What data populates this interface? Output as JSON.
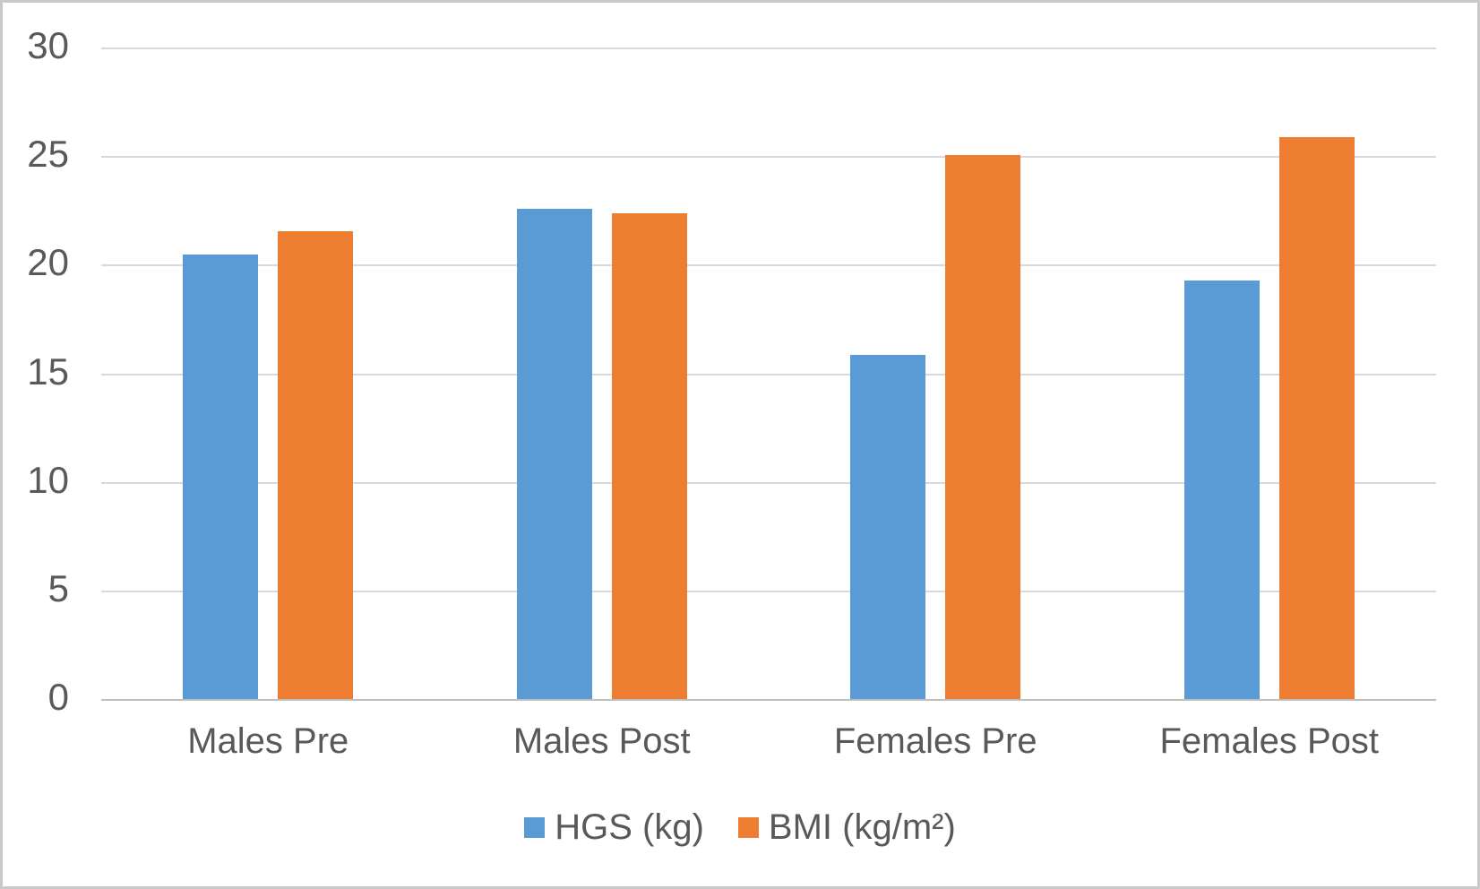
{
  "frame": {
    "background_color": "#ffffff",
    "border_color": "#c9c9c9"
  },
  "chart_data": {
    "type": "bar",
    "title": "",
    "xlabel": "",
    "ylabel": "",
    "categories": [
      "Males Pre",
      "Males Post",
      "Females Pre",
      "Females Post"
    ],
    "series": [
      {
        "name": "HGS (kg)",
        "color": "#5B9BD5",
        "values": [
          20.5,
          22.6,
          15.9,
          19.3
        ]
      },
      {
        "name": "BMI (kg/m²)",
        "color": "#ED7D31",
        "values": [
          21.6,
          22.4,
          25.1,
          25.9
        ]
      }
    ],
    "ylim": [
      0,
      30
    ],
    "yticks": [
      0,
      5,
      10,
      15,
      20,
      25,
      30
    ],
    "grid": true,
    "gridline_color": "#D9D9D9",
    "axis_line_color": "#BFBFBF",
    "text_color": "#595959",
    "legend_position": "bottom"
  }
}
